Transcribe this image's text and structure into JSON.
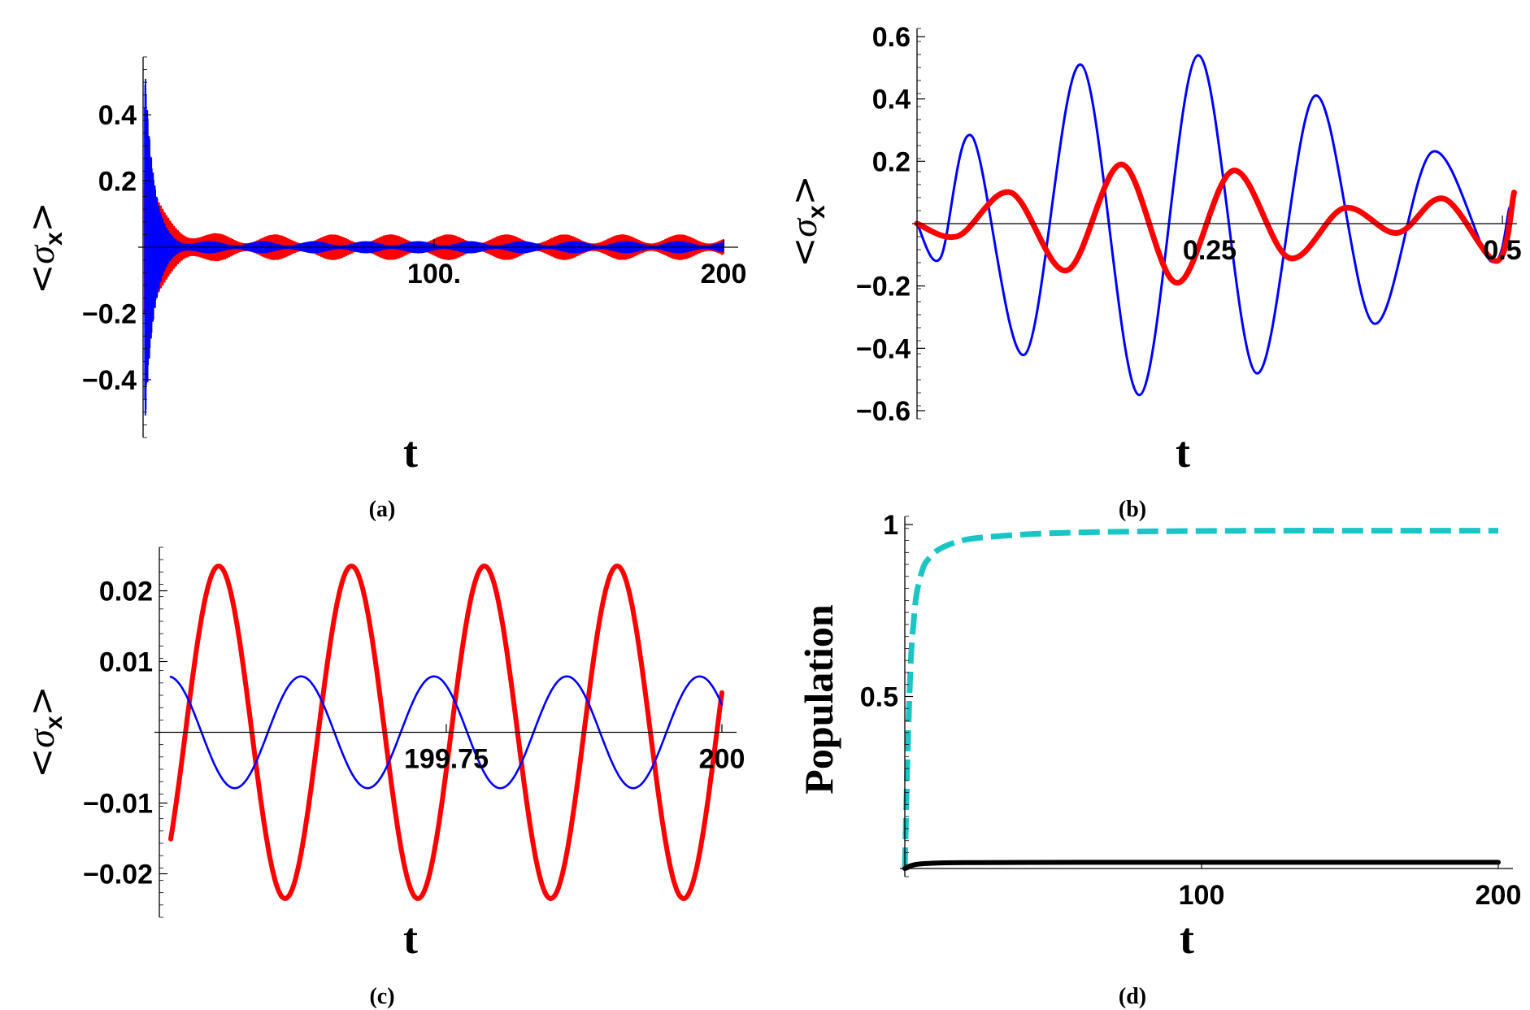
{
  "chart_data": [
    {
      "id": "a",
      "type": "line",
      "caption": "(a)",
      "xlabel": "t",
      "ylabel": {
        "sigma": "σ",
        "sub": "x",
        "open": "<",
        "close": ">"
      },
      "xlim": [
        0,
        200
      ],
      "ylim": [
        -0.55,
        0.55
      ],
      "xticks": [
        {
          "value": 100,
          "label": "100."
        },
        {
          "value": 200,
          "label": "200"
        }
      ],
      "yticks": [
        {
          "value": -0.4,
          "label": "−0.4"
        },
        {
          "value": -0.2,
          "label": "−0.2"
        },
        {
          "value": 0.2,
          "label": "0.2"
        },
        {
          "value": 0.4,
          "label": "0.4"
        }
      ],
      "series": [
        {
          "name": "red",
          "color": "#ff0000",
          "amp0": 0.22,
          "decay": 6,
          "floor": 0.025,
          "beat": 20
        },
        {
          "name": "blue",
          "color": "#0000ff",
          "amp0": 0.55,
          "decay": 3,
          "floor": 0.012,
          "beat": 18
        }
      ]
    },
    {
      "id": "b",
      "type": "line",
      "caption": "(b)",
      "xlabel": "t",
      "ylabel": {
        "sigma": "σ",
        "sub": "x",
        "open": "<",
        "close": ">"
      },
      "xlim": [
        0,
        0.5
      ],
      "ylim": [
        -0.6,
        0.6
      ],
      "xticks": [
        {
          "value": 0.25,
          "label": "0.25"
        },
        {
          "value": 0.5,
          "label": "0.5"
        }
      ],
      "yticks": [
        {
          "value": -0.6,
          "label": "−0.6"
        },
        {
          "value": -0.4,
          "label": "−0.4"
        },
        {
          "value": -0.2,
          "label": "−0.2"
        },
        {
          "value": 0.2,
          "label": "0.2"
        },
        {
          "value": 0.4,
          "label": "0.4"
        },
        {
          "value": 0.6,
          "label": "0.6"
        }
      ],
      "series": [
        {
          "name": "blue",
          "color": "#0000ff",
          "t": [
            0,
            0.02,
            0.047,
            0.092,
            0.14,
            0.19,
            0.24,
            0.29,
            0.34,
            0.39,
            0.44,
            0.49,
            0.506
          ],
          "v": [
            0,
            -0.11,
            0.28,
            -0.42,
            0.51,
            -0.55,
            0.54,
            -0.48,
            0.41,
            -0.32,
            0.23,
            -0.12,
            0.05
          ]
        },
        {
          "name": "red",
          "color": "#ff0000",
          "t": [
            0,
            0.035,
            0.08,
            0.128,
            0.175,
            0.222,
            0.27,
            0.318,
            0.365,
            0.41,
            0.45,
            0.495,
            0.51
          ],
          "v": [
            0,
            -0.04,
            0.1,
            -0.15,
            0.19,
            -0.19,
            0.17,
            -0.11,
            0.05,
            -0.03,
            0.08,
            -0.12,
            0.1
          ]
        }
      ]
    },
    {
      "id": "c",
      "type": "line",
      "caption": "(c)",
      "xlabel": "t",
      "ylabel": {
        "sigma": "σ",
        "sub": "x",
        "open": "<",
        "close": ">"
      },
      "xlim": [
        199.5,
        200
      ],
      "ylim": [
        -0.025,
        0.025
      ],
      "xticks": [
        {
          "value": 199.75,
          "label": "199.75"
        },
        {
          "value": 200,
          "label": "200"
        }
      ],
      "yticks": [
        {
          "value": -0.02,
          "label": "−0.02"
        },
        {
          "value": -0.01,
          "label": "−0.01"
        },
        {
          "value": 0.01,
          "label": "0.01"
        },
        {
          "value": 0.02,
          "label": "0.02"
        }
      ],
      "series": [
        {
          "name": "red",
          "color": "#ff0000",
          "amplitude": 0.0235,
          "period": 0.1205,
          "first_peak_t": 199.5435
        },
        {
          "name": "blue",
          "color": "#0000ff",
          "amplitude": 0.0079,
          "period": 0.1205,
          "first_peak_t": 199.4978
        }
      ]
    },
    {
      "id": "d",
      "type": "line",
      "caption": "(d)",
      "xlabel": "t",
      "ylabel": "Population",
      "xlim": [
        0,
        200
      ],
      "ylim": [
        0,
        1
      ],
      "xticks": [
        {
          "value": 100,
          "label": "100"
        },
        {
          "value": 200,
          "label": "200"
        }
      ],
      "yticks": [
        {
          "value": 0.5,
          "label": "0.5"
        },
        {
          "value": 1,
          "label": "1"
        }
      ],
      "series": [
        {
          "name": "cyan-dashed",
          "color": "#1bc5c5",
          "t": [
            0,
            1,
            2,
            3,
            4,
            6,
            8,
            12,
            20,
            30,
            50,
            80,
            120,
            160,
            200
          ],
          "v": [
            0,
            0.35,
            0.6,
            0.72,
            0.8,
            0.87,
            0.9,
            0.93,
            0.955,
            0.965,
            0.975,
            0.98,
            0.982,
            0.982,
            0.982
          ]
        },
        {
          "name": "black",
          "color": "#000000",
          "t": [
            0,
            1,
            2,
            4,
            8,
            20,
            60,
            200
          ],
          "v": [
            0,
            0.003,
            0.008,
            0.012,
            0.015,
            0.017,
            0.018,
            0.018
          ]
        }
      ]
    }
  ]
}
